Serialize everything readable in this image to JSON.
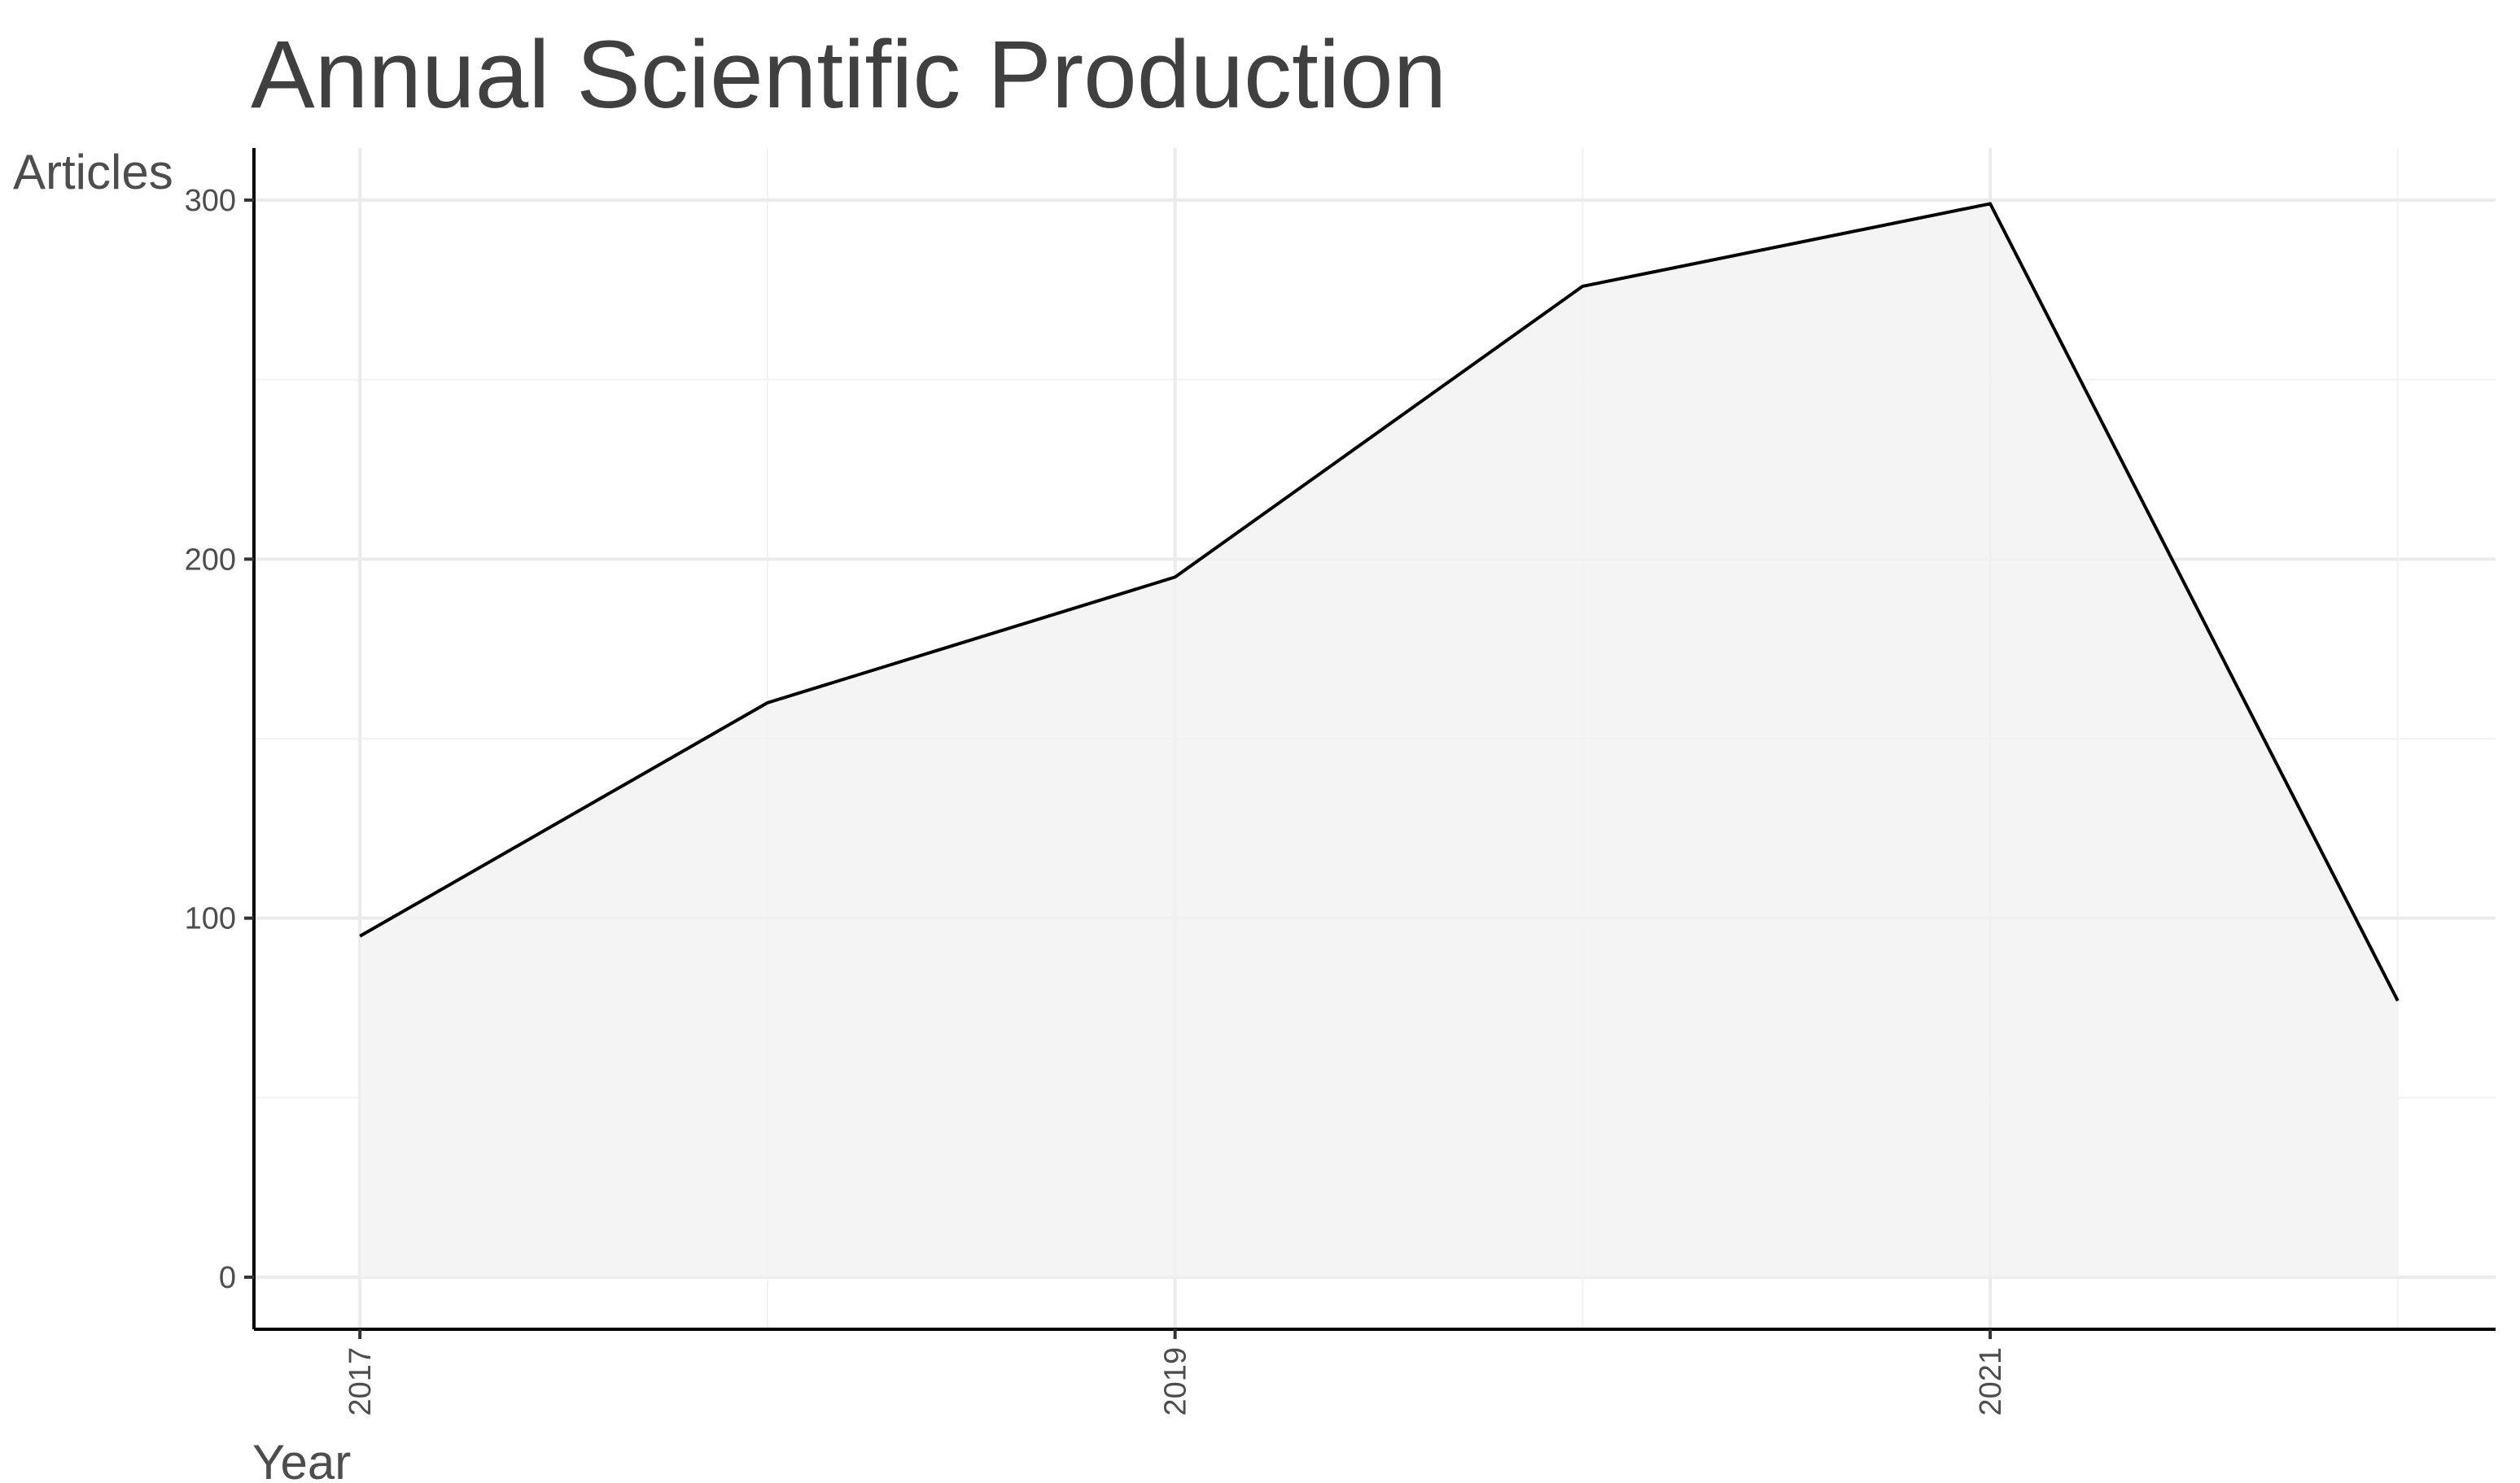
{
  "chart_data": {
    "type": "area",
    "title": "Annual Scientific Production",
    "xlabel": "Year",
    "ylabel": "Articles",
    "x": [
      2017,
      2018,
      2019,
      2020,
      2021,
      2022
    ],
    "series": [
      {
        "values": [
          95,
          160,
          195,
          276,
          299,
          77
        ]
      }
    ],
    "xticks": [
      "2017",
      "2019",
      "2021"
    ],
    "xtick_values": [
      2017,
      2019,
      2021
    ],
    "yticks": [
      "0",
      "100",
      "200",
      "300"
    ],
    "ytick_values": [
      0,
      100,
      200,
      300
    ],
    "xlim": [
      2016.74,
      2022.24
    ],
    "ylim": [
      -14.5,
      314.5
    ],
    "grid": true,
    "legend": "none",
    "colors": {
      "line": "#000000",
      "fill": "#f2f2f2",
      "grid": "#ebebeb"
    }
  }
}
